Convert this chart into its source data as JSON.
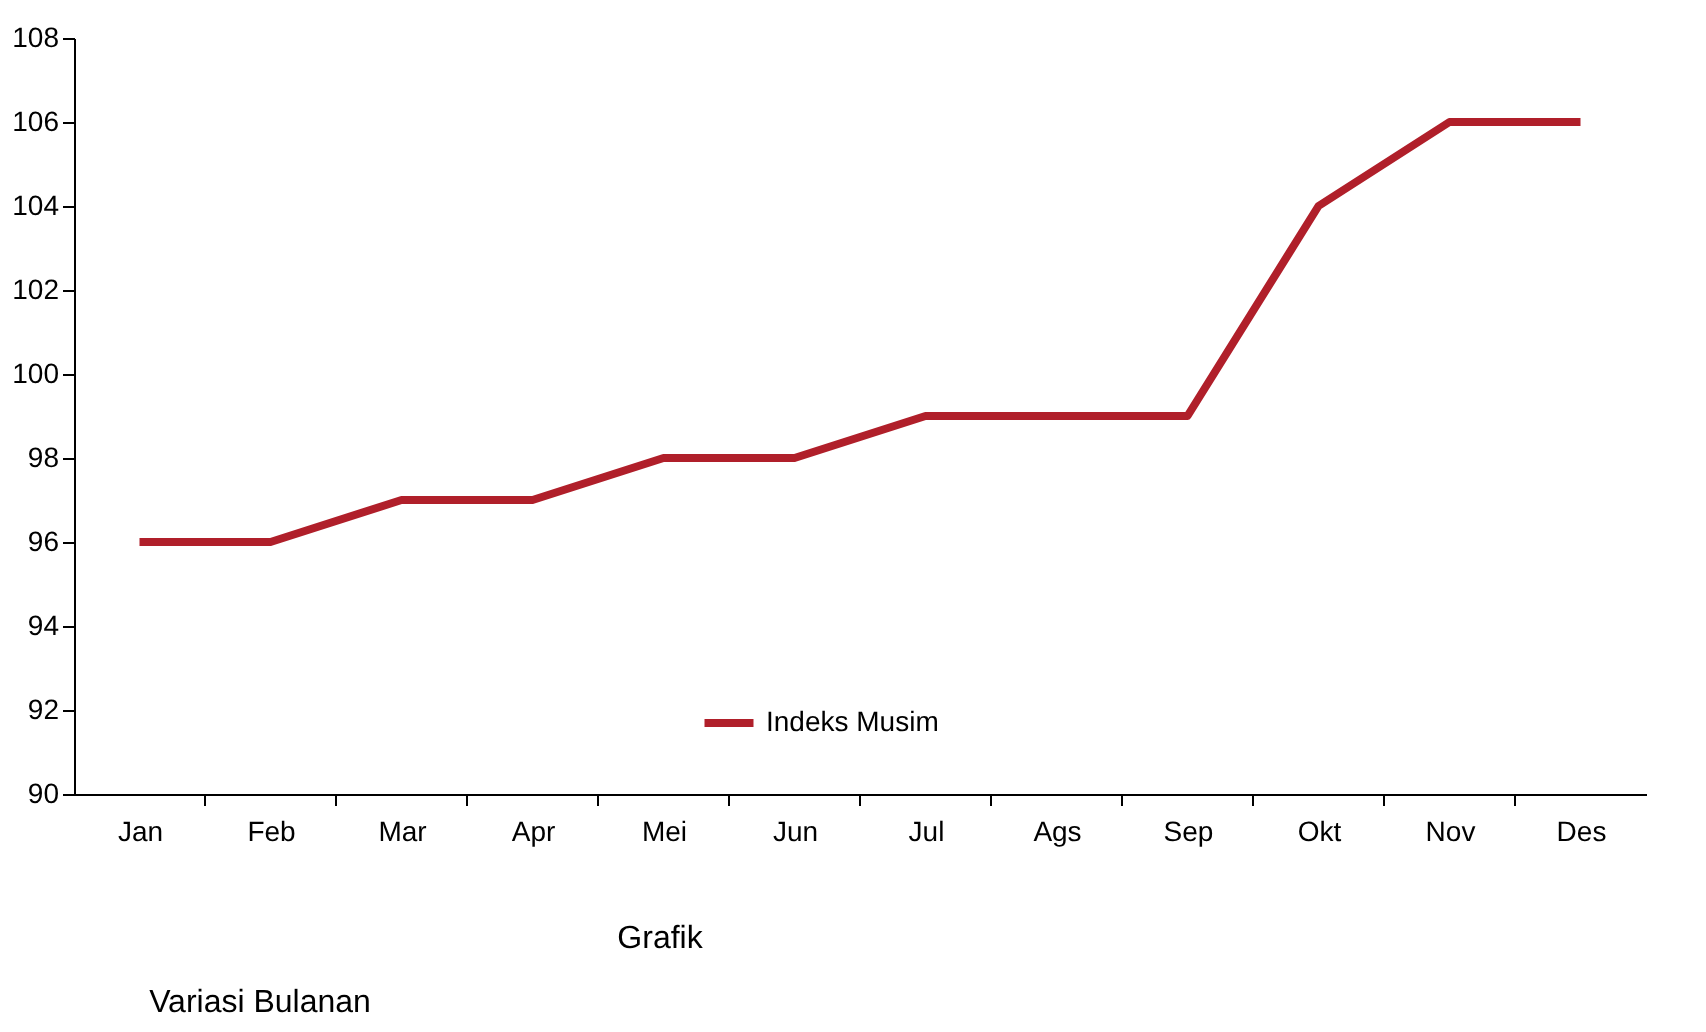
{
  "chart_data": {
    "type": "line",
    "categories": [
      "Jan",
      "Feb",
      "Mar",
      "Apr",
      "Mei",
      "Jun",
      "Jul",
      "Ags",
      "Sep",
      "Okt",
      "Nov",
      "Des"
    ],
    "series": [
      {
        "name": "Indeks Musim",
        "color": "#b01f2a",
        "values": [
          96,
          96,
          97,
          97,
          98,
          98,
          99,
          99,
          99,
          104,
          106,
          106
        ]
      }
    ],
    "ylim": [
      90,
      108
    ],
    "yticks": [
      90,
      92,
      94,
      96,
      98,
      100,
      102,
      104,
      106,
      108
    ],
    "grid": false,
    "legend": "bottom",
    "marker": "none",
    "line_style": "solid",
    "annotations": [
      "Grafik",
      "Variasi Bulanan"
    ]
  }
}
